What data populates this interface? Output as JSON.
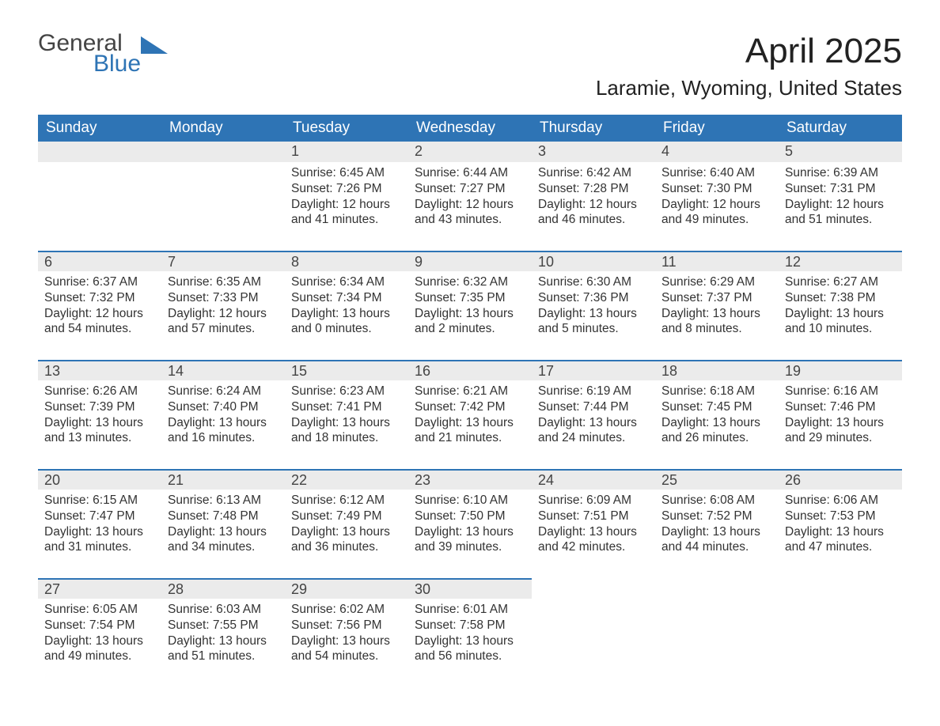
{
  "logo": {
    "word1": "General",
    "word2": "Blue",
    "text_color": "#444444",
    "blue_color": "#2e74b5"
  },
  "title": "April 2025",
  "subtitle": "Laramie, Wyoming, United States",
  "colors": {
    "header_bg": "#2e74b5",
    "header_text": "#ffffff",
    "daynum_bg": "#ebebeb",
    "row_border": "#2e74b5",
    "body_text": "#333333",
    "background": "#ffffff"
  },
  "fonts": {
    "family": "Segoe UI, Arial, Helvetica, sans-serif",
    "title_size_pt": 33,
    "subtitle_size_pt": 20,
    "header_size_pt": 14,
    "daynum_size_pt": 14,
    "body_size_pt": 12
  },
  "day_headers": [
    "Sunday",
    "Monday",
    "Tuesday",
    "Wednesday",
    "Thursday",
    "Friday",
    "Saturday"
  ],
  "weeks": [
    [
      null,
      null,
      {
        "n": "1",
        "sunrise": "6:45 AM",
        "sunset": "7:26 PM",
        "daylight": "12 hours and 41 minutes."
      },
      {
        "n": "2",
        "sunrise": "6:44 AM",
        "sunset": "7:27 PM",
        "daylight": "12 hours and 43 minutes."
      },
      {
        "n": "3",
        "sunrise": "6:42 AM",
        "sunset": "7:28 PM",
        "daylight": "12 hours and 46 minutes."
      },
      {
        "n": "4",
        "sunrise": "6:40 AM",
        "sunset": "7:30 PM",
        "daylight": "12 hours and 49 minutes."
      },
      {
        "n": "5",
        "sunrise": "6:39 AM",
        "sunset": "7:31 PM",
        "daylight": "12 hours and 51 minutes."
      }
    ],
    [
      {
        "n": "6",
        "sunrise": "6:37 AM",
        "sunset": "7:32 PM",
        "daylight": "12 hours and 54 minutes."
      },
      {
        "n": "7",
        "sunrise": "6:35 AM",
        "sunset": "7:33 PM",
        "daylight": "12 hours and 57 minutes."
      },
      {
        "n": "8",
        "sunrise": "6:34 AM",
        "sunset": "7:34 PM",
        "daylight": "13 hours and 0 minutes."
      },
      {
        "n": "9",
        "sunrise": "6:32 AM",
        "sunset": "7:35 PM",
        "daylight": "13 hours and 2 minutes."
      },
      {
        "n": "10",
        "sunrise": "6:30 AM",
        "sunset": "7:36 PM",
        "daylight": "13 hours and 5 minutes."
      },
      {
        "n": "11",
        "sunrise": "6:29 AM",
        "sunset": "7:37 PM",
        "daylight": "13 hours and 8 minutes."
      },
      {
        "n": "12",
        "sunrise": "6:27 AM",
        "sunset": "7:38 PM",
        "daylight": "13 hours and 10 minutes."
      }
    ],
    [
      {
        "n": "13",
        "sunrise": "6:26 AM",
        "sunset": "7:39 PM",
        "daylight": "13 hours and 13 minutes."
      },
      {
        "n": "14",
        "sunrise": "6:24 AM",
        "sunset": "7:40 PM",
        "daylight": "13 hours and 16 minutes."
      },
      {
        "n": "15",
        "sunrise": "6:23 AM",
        "sunset": "7:41 PM",
        "daylight": "13 hours and 18 minutes."
      },
      {
        "n": "16",
        "sunrise": "6:21 AM",
        "sunset": "7:42 PM",
        "daylight": "13 hours and 21 minutes."
      },
      {
        "n": "17",
        "sunrise": "6:19 AM",
        "sunset": "7:44 PM",
        "daylight": "13 hours and 24 minutes."
      },
      {
        "n": "18",
        "sunrise": "6:18 AM",
        "sunset": "7:45 PM",
        "daylight": "13 hours and 26 minutes."
      },
      {
        "n": "19",
        "sunrise": "6:16 AM",
        "sunset": "7:46 PM",
        "daylight": "13 hours and 29 minutes."
      }
    ],
    [
      {
        "n": "20",
        "sunrise": "6:15 AM",
        "sunset": "7:47 PM",
        "daylight": "13 hours and 31 minutes."
      },
      {
        "n": "21",
        "sunrise": "6:13 AM",
        "sunset": "7:48 PM",
        "daylight": "13 hours and 34 minutes."
      },
      {
        "n": "22",
        "sunrise": "6:12 AM",
        "sunset": "7:49 PM",
        "daylight": "13 hours and 36 minutes."
      },
      {
        "n": "23",
        "sunrise": "6:10 AM",
        "sunset": "7:50 PM",
        "daylight": "13 hours and 39 minutes."
      },
      {
        "n": "24",
        "sunrise": "6:09 AM",
        "sunset": "7:51 PM",
        "daylight": "13 hours and 42 minutes."
      },
      {
        "n": "25",
        "sunrise": "6:08 AM",
        "sunset": "7:52 PM",
        "daylight": "13 hours and 44 minutes."
      },
      {
        "n": "26",
        "sunrise": "6:06 AM",
        "sunset": "7:53 PM",
        "daylight": "13 hours and 47 minutes."
      }
    ],
    [
      {
        "n": "27",
        "sunrise": "6:05 AM",
        "sunset": "7:54 PM",
        "daylight": "13 hours and 49 minutes."
      },
      {
        "n": "28",
        "sunrise": "6:03 AM",
        "sunset": "7:55 PM",
        "daylight": "13 hours and 51 minutes."
      },
      {
        "n": "29",
        "sunrise": "6:02 AM",
        "sunset": "7:56 PM",
        "daylight": "13 hours and 54 minutes."
      },
      {
        "n": "30",
        "sunrise": "6:01 AM",
        "sunset": "7:58 PM",
        "daylight": "13 hours and 56 minutes."
      },
      null,
      null,
      null
    ]
  ],
  "labels": {
    "sunrise": "Sunrise: ",
    "sunset": "Sunset: ",
    "daylight": "Daylight: "
  }
}
